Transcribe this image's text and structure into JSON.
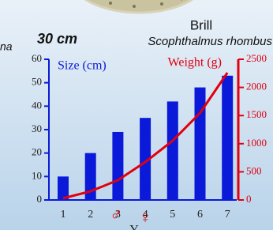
{
  "chart_data": {
    "type": "bar",
    "categories": [
      "1",
      "2",
      "3",
      "4",
      "5",
      "6",
      "7"
    ],
    "series": [
      {
        "name": "Size (cm)",
        "color": "#0a1ad8",
        "values": [
          10,
          20,
          29,
          35,
          42,
          48,
          53
        ]
      },
      {
        "name": "Weight (g)",
        "color": "#e00010",
        "axis": "y2",
        "type": "line",
        "values": [
          30,
          154,
          351,
          674,
          1053,
          1545,
          2261
        ]
      }
    ],
    "ylim": [
      0,
      60
    ],
    "yticks": [
      0,
      10,
      20,
      30,
      40,
      50,
      60
    ],
    "y2lim": [
      0,
      2500
    ],
    "y2ticks": [
      0,
      500,
      1000,
      1500,
      2000,
      2500
    ],
    "annotations": {
      "left_cut": "na",
      "size_label": "30 cm",
      "species": "Brill",
      "latin": "Scophthalmus rhombus",
      "male": "♂",
      "female": "♀",
      "axis_cut": "Y"
    }
  }
}
